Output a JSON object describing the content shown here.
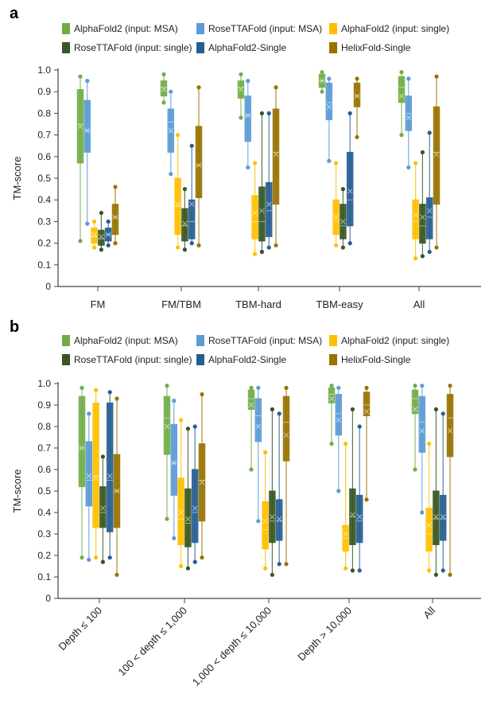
{
  "panels": [
    {
      "letter": "a"
    },
    {
      "letter": "b"
    }
  ],
  "legend": [
    {
      "label": "AlphaFold2 (input: MSA)",
      "color": "#70ad47"
    },
    {
      "label": "RoseTTAFold (input: MSA)",
      "color": "#5b9bd5"
    },
    {
      "label": "AlphaFold2 (input: single)",
      "color": "#ffc000"
    },
    {
      "label": "RoseTTAFold (input: single)",
      "color": "#375623"
    },
    {
      "label": "AlphaFold2-Single",
      "color": "#255e91"
    },
    {
      "label": "HelixFold-Single",
      "color": "#997300"
    }
  ],
  "chart_data": [
    {
      "type": "box",
      "ylabel": "TM-score",
      "ylim": [
        0,
        1
      ],
      "yticks": [
        "0",
        "0.1",
        "0.2",
        "0.3",
        "0.4",
        "0.5",
        "0.6",
        "0.7",
        "0.8",
        "0.9",
        "1.0"
      ],
      "categories": [
        "FM",
        "FM/TBM",
        "TBM-hard",
        "TBM-easy",
        "All"
      ],
      "series": [
        {
          "name": "AlphaFold2 (input: MSA)",
          "boxes": [
            [
              0.21,
              0.57,
              0.75,
              0.91,
              0.97
            ],
            [
              0.85,
              0.88,
              0.92,
              0.95,
              0.98
            ],
            [
              0.78,
              0.87,
              0.92,
              0.95,
              0.98
            ],
            [
              0.9,
              0.92,
              0.95,
              0.98,
              0.99
            ],
            [
              0.7,
              0.85,
              0.92,
              0.97,
              0.99
            ]
          ],
          "means": [
            0.74,
            0.91,
            0.91,
            0.95,
            0.88
          ]
        },
        {
          "name": "RoseTTAFold (input: MSA)",
          "boxes": [
            [
              0.29,
              0.62,
              0.72,
              0.86,
              0.95
            ],
            [
              0.52,
              0.62,
              0.76,
              0.82,
              0.9
            ],
            [
              0.55,
              0.67,
              0.79,
              0.88,
              0.95
            ],
            [
              0.58,
              0.77,
              0.85,
              0.94,
              0.96
            ],
            [
              0.55,
              0.72,
              0.8,
              0.88,
              0.96
            ]
          ],
          "means": [
            0.72,
            0.72,
            0.79,
            0.83,
            0.78
          ]
        },
        {
          "name": "AlphaFold2 (input: single)",
          "boxes": [
            [
              0.18,
              0.2,
              0.23,
              0.27,
              0.3
            ],
            [
              0.18,
              0.24,
              0.37,
              0.5,
              0.7
            ],
            [
              0.15,
              0.22,
              0.3,
              0.42,
              0.57
            ],
            [
              0.19,
              0.24,
              0.3,
              0.4,
              0.57
            ],
            [
              0.13,
              0.22,
              0.3,
              0.4,
              0.57
            ]
          ],
          "means": [
            0.24,
            0.38,
            0.34,
            0.32,
            0.33
          ]
        },
        {
          "name": "RoseTTAFold (input: single)",
          "boxes": [
            [
              0.17,
              0.19,
              0.22,
              0.26,
              0.34
            ],
            [
              0.17,
              0.21,
              0.28,
              0.36,
              0.45
            ],
            [
              0.16,
              0.21,
              0.3,
              0.46,
              0.8
            ],
            [
              0.18,
              0.22,
              0.28,
              0.38,
              0.45
            ],
            [
              0.14,
              0.2,
              0.28,
              0.38,
              0.62
            ]
          ],
          "means": [
            0.23,
            0.29,
            0.35,
            0.3,
            0.32
          ]
        },
        {
          "name": "AlphaFold2-Single",
          "boxes": [
            [
              0.19,
              0.21,
              0.24,
              0.27,
              0.3
            ],
            [
              0.2,
              0.22,
              0.3,
              0.4,
              0.65
            ],
            [
              0.18,
              0.23,
              0.35,
              0.48,
              0.8
            ],
            [
              0.2,
              0.28,
              0.4,
              0.62,
              0.8
            ],
            [
              0.16,
              0.22,
              0.32,
              0.41,
              0.71
            ]
          ],
          "means": [
            0.24,
            0.38,
            0.38,
            0.44,
            0.35
          ]
        },
        {
          "name": "HelixFold-Single",
          "boxes": [
            [
              0.2,
              0.24,
              0.32,
              0.38,
              0.46
            ],
            [
              0.19,
              0.41,
              0.56,
              0.74,
              0.92
            ],
            [
              0.19,
              0.38,
              0.62,
              0.82,
              0.92
            ],
            [
              0.69,
              0.83,
              0.88,
              0.94,
              0.96
            ],
            [
              0.18,
              0.38,
              0.62,
              0.83,
              0.97
            ]
          ],
          "means": [
            0.32,
            0.56,
            0.61,
            0.88,
            0.61
          ]
        }
      ]
    },
    {
      "type": "box",
      "ylabel": "TM-score",
      "ylim": [
        0,
        1
      ],
      "yticks": [
        "0",
        "0.1",
        "0.2",
        "0.3",
        "0.4",
        "0.5",
        "0.6",
        "0.7",
        "0.8",
        "0.9",
        "1.0"
      ],
      "categories": [
        "Depth ≤ 100",
        "100 < depth ≤ 1,000",
        "1,000 < depth ≤ 10,000",
        "Depth > 10,000",
        "All"
      ],
      "series": [
        {
          "name": "AlphaFold2 (input: MSA)",
          "boxes": [
            [
              0.19,
              0.52,
              0.7,
              0.94,
              0.98
            ],
            [
              0.37,
              0.67,
              0.84,
              0.94,
              0.99
            ],
            [
              0.6,
              0.88,
              0.93,
              0.97,
              0.98
            ],
            [
              0.72,
              0.91,
              0.95,
              0.98,
              0.99
            ],
            [
              0.6,
              0.86,
              0.93,
              0.97,
              0.99
            ]
          ],
          "means": [
            0.7,
            0.8,
            0.9,
            0.93,
            0.88
          ]
        },
        {
          "name": "RoseTTAFold (input: MSA)",
          "boxes": [
            [
              0.18,
              0.43,
              0.55,
              0.73,
              0.86
            ],
            [
              0.28,
              0.48,
              0.63,
              0.81,
              0.92
            ],
            [
              0.36,
              0.73,
              0.85,
              0.93,
              0.98
            ],
            [
              0.5,
              0.76,
              0.86,
              0.95,
              0.98
            ],
            [
              0.4,
              0.68,
              0.82,
              0.94,
              0.99
            ]
          ],
          "means": [
            0.57,
            0.63,
            0.8,
            0.83,
            0.78
          ]
        },
        {
          "name": "AlphaFold2 (input: single)",
          "boxes": [
            [
              0.19,
              0.33,
              0.57,
              0.91,
              0.97
            ],
            [
              0.15,
              0.25,
              0.37,
              0.56,
              0.83
            ],
            [
              0.14,
              0.23,
              0.32,
              0.45,
              0.68
            ],
            [
              0.14,
              0.22,
              0.28,
              0.34,
              0.72
            ],
            [
              0.13,
              0.22,
              0.3,
              0.42,
              0.72
            ]
          ],
          "means": [
            0.56,
            0.4,
            0.36,
            0.3,
            0.34
          ]
        },
        {
          "name": "RoseTTAFold (input: single)",
          "boxes": [
            [
              0.17,
              0.33,
              0.4,
              0.52,
              0.66
            ],
            [
              0.14,
              0.24,
              0.35,
              0.51,
              0.79
            ],
            [
              0.11,
              0.26,
              0.36,
              0.5,
              0.88
            ],
            [
              0.13,
              0.25,
              0.38,
              0.51,
              0.88
            ],
            [
              0.11,
              0.25,
              0.37,
              0.5,
              0.88
            ]
          ],
          "means": [
            0.42,
            0.37,
            0.38,
            0.39,
            0.38
          ]
        },
        {
          "name": "AlphaFold2-Single",
          "boxes": [
            [
              0.19,
              0.31,
              0.55,
              0.91,
              0.96
            ],
            [
              0.17,
              0.26,
              0.4,
              0.6,
              0.8
            ],
            [
              0.16,
              0.27,
              0.36,
              0.46,
              0.86
            ],
            [
              0.13,
              0.26,
              0.36,
              0.48,
              0.8
            ],
            [
              0.13,
              0.27,
              0.37,
              0.48,
              0.86
            ]
          ],
          "means": [
            0.57,
            0.42,
            0.37,
            0.38,
            0.38
          ]
        },
        {
          "name": "HelixFold-Single",
          "boxes": [
            [
              0.11,
              0.33,
              0.5,
              0.67,
              0.93
            ],
            [
              0.19,
              0.36,
              0.55,
              0.72,
              0.95
            ],
            [
              0.16,
              0.64,
              0.82,
              0.94,
              0.98
            ],
            [
              0.46,
              0.85,
              0.9,
              0.96,
              0.98
            ],
            [
              0.11,
              0.66,
              0.84,
              0.95,
              0.99
            ]
          ],
          "means": [
            0.5,
            0.54,
            0.76,
            0.87,
            0.78
          ]
        }
      ]
    }
  ]
}
